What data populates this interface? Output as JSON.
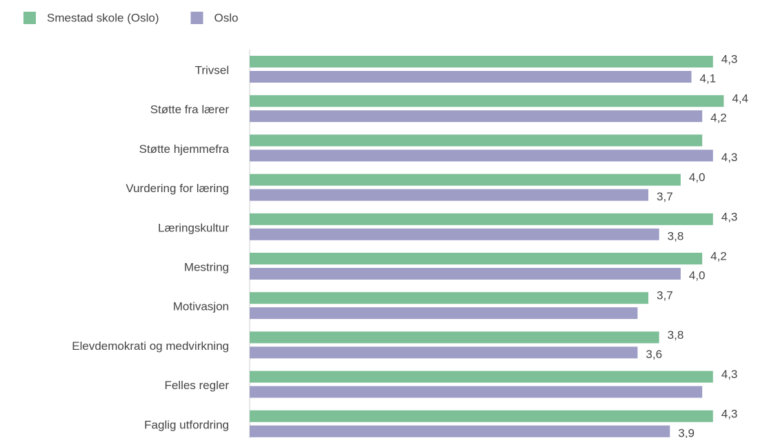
{
  "chart_data": {
    "type": "hbar",
    "categories": [
      "Trivsel",
      "Støtte fra lærer",
      "Støtte hjemmefra",
      "Vurdering for læring",
      "Læringskultur",
      "Mestring",
      "Motivasjon",
      "Elevdemokrati og medvirkning",
      "Felles regler",
      "Faglig utfordring"
    ],
    "series": [
      {
        "name": "Smestad skole (Oslo)",
        "color": "#7dbf97",
        "values": [
          4.3,
          4.4,
          4.2,
          4.0,
          4.3,
          4.2,
          3.7,
          3.8,
          4.3,
          4.3
        ],
        "value_labels": [
          "4,3",
          "4,4",
          null,
          "4,0",
          "4,3",
          "4,2",
          "3,7",
          "3,8",
          "4,3",
          "4,3"
        ]
      },
      {
        "name": "Oslo",
        "color": "#9d9dc6",
        "values": [
          4.1,
          4.2,
          4.3,
          3.7,
          3.8,
          4.0,
          3.6,
          3.6,
          4.2,
          3.9
        ],
        "value_labels": [
          "4,1",
          "4,2",
          "4,3",
          "3,7",
          "3,8",
          "4,0",
          null,
          "3,6",
          null,
          "3,9"
        ]
      }
    ],
    "xlim": [
      0,
      4.5
    ],
    "legend": "top-left"
  }
}
